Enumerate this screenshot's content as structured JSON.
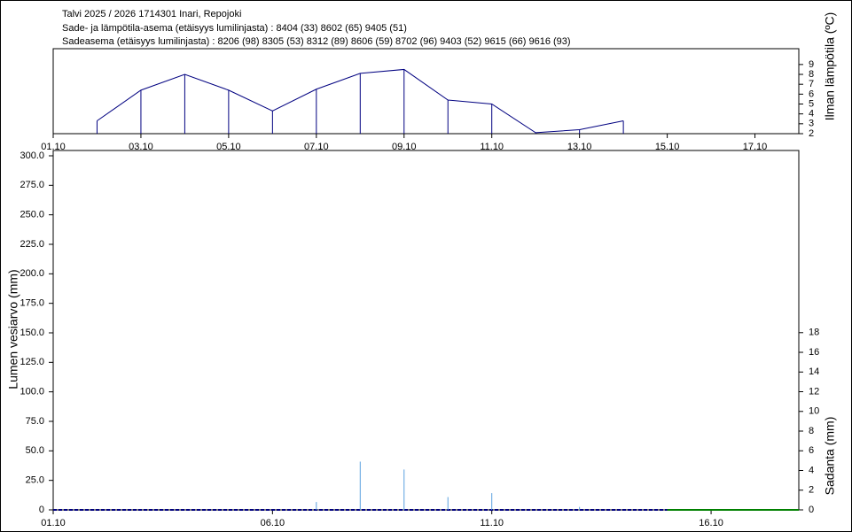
{
  "chart_data": [
    {
      "type": "line",
      "title": "Talvi 2025 / 2026 1714301 Inari, Repojoki",
      "subtitle": [
        "Sade- ja lämpötila-asema (etäisyys lumilinjasta) :  8404 (33) 8602 (65) 9405 (51)",
        "Sadeasema (etäisyys lumilinjasta) :  8206 (98) 8305 (53) 8312 (89) 8606 (59) 8702 (96) 9403 (52) 9615 (66) 9616 (93)"
      ],
      "y_label": "Ilman lämpötila (ºC)",
      "x": [
        2,
        3,
        4,
        5,
        6,
        7,
        8,
        9,
        10,
        11,
        12,
        13,
        14
      ],
      "values": [
        3.3,
        6.4,
        8.0,
        6.4,
        4.3,
        6.5,
        8.1,
        8.5,
        5.4,
        5.0,
        2.1,
        2.4,
        3.3
      ],
      "color": "#000080",
      "drop_lines": true,
      "xlim": [
        1,
        18
      ],
      "xticks": [
        {
          "value": 1,
          "label": "01.10"
        },
        {
          "value": 3,
          "label": "03.10"
        },
        {
          "value": 5,
          "label": "05.10"
        },
        {
          "value": 7,
          "label": "07.10"
        },
        {
          "value": 9,
          "label": "09.10"
        },
        {
          "value": 11,
          "label": "11.10"
        },
        {
          "value": 13,
          "label": "13.10"
        },
        {
          "value": 15,
          "label": "15.10"
        },
        {
          "value": 17,
          "label": "17.10"
        }
      ],
      "ylim": [
        2,
        10.6
      ],
      "yticks": [
        2,
        3,
        4,
        5,
        6,
        7,
        8,
        9
      ]
    },
    {
      "type": "combo",
      "y_label": "Lumen vesiarvo (mm)",
      "y2_label": "Sadanta (mm)",
      "series": [
        {
          "type": "line",
          "color": "#000080",
          "dashed": true,
          "x": [
            1,
            15
          ],
          "values": [
            0,
            0
          ]
        },
        {
          "type": "line",
          "color": "#008000",
          "x": [
            15,
            18
          ],
          "values": [
            0,
            0
          ]
        },
        {
          "type": "bar",
          "axis": "y2",
          "color": "#5aa0e0",
          "x": [
            7,
            8,
            9,
            10,
            11,
            13
          ],
          "values": [
            0.8,
            4.9,
            4.1,
            1.3,
            1.7,
            0.3
          ]
        }
      ],
      "xlim": [
        1,
        18
      ],
      "xticks": [
        {
          "value": 1,
          "label": "01.10"
        },
        {
          "value": 6,
          "label": "06.10"
        },
        {
          "value": 11,
          "label": "11.10"
        },
        {
          "value": 16,
          "label": "16.10"
        }
      ],
      "ylim": [
        0,
        304.5
      ],
      "yticks": [
        0,
        {
          "value": 25,
          "label": "25.0"
        },
        {
          "value": 50,
          "label": "50.0"
        },
        {
          "value": 75,
          "label": "75.0"
        },
        {
          "value": 100,
          "label": "100.0"
        },
        {
          "value": 125,
          "label": "125.0"
        },
        {
          "value": 150,
          "label": "150.0"
        },
        {
          "value": 175,
          "label": "175.0"
        },
        {
          "value": 200,
          "label": "200.0"
        },
        {
          "value": 225,
          "label": "225.0"
        },
        {
          "value": 250,
          "label": "250.0"
        },
        {
          "value": 275,
          "label": "275.0"
        },
        {
          "value": 300,
          "label": "300.0"
        }
      ],
      "y2lim": [
        0,
        36.5
      ],
      "y2ticks": [
        0,
        2,
        4,
        6,
        8,
        10,
        12,
        14,
        16,
        18
      ]
    }
  ]
}
